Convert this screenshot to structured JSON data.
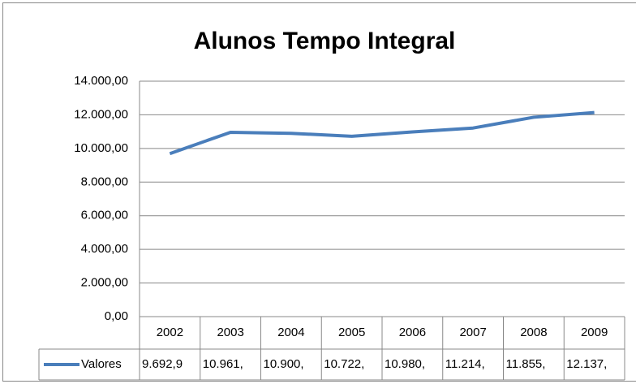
{
  "chart_data": {
    "type": "line",
    "title": "Alunos Tempo Integral",
    "categories": [
      "2002",
      "2003",
      "2004",
      "2005",
      "2006",
      "2007",
      "2008",
      "2009"
    ],
    "series": [
      {
        "name": "Valores",
        "color": "#4a7ebb",
        "values": [
          9692.9,
          10961,
          10900,
          10722,
          10980,
          11214,
          11855,
          12137
        ],
        "value_labels": [
          "9.692,9",
          "10.961,",
          "10.900,",
          "10.722,",
          "10.980,",
          "11.214,",
          "11.855,",
          "12.137,"
        ]
      }
    ],
    "ylim": [
      0,
      14000
    ],
    "yticks": [
      {
        "value": 0,
        "label": "0,00"
      },
      {
        "value": 2000,
        "label": "2.000,00"
      },
      {
        "value": 4000,
        "label": "4.000,00"
      },
      {
        "value": 6000,
        "label": "6.000,00"
      },
      {
        "value": 8000,
        "label": "8.000,00"
      },
      {
        "value": 10000,
        "label": "10.000,00"
      },
      {
        "value": 12000,
        "label": "12.000,00"
      },
      {
        "value": 14000,
        "label": "14.000,00"
      }
    ],
    "grid": true
  }
}
